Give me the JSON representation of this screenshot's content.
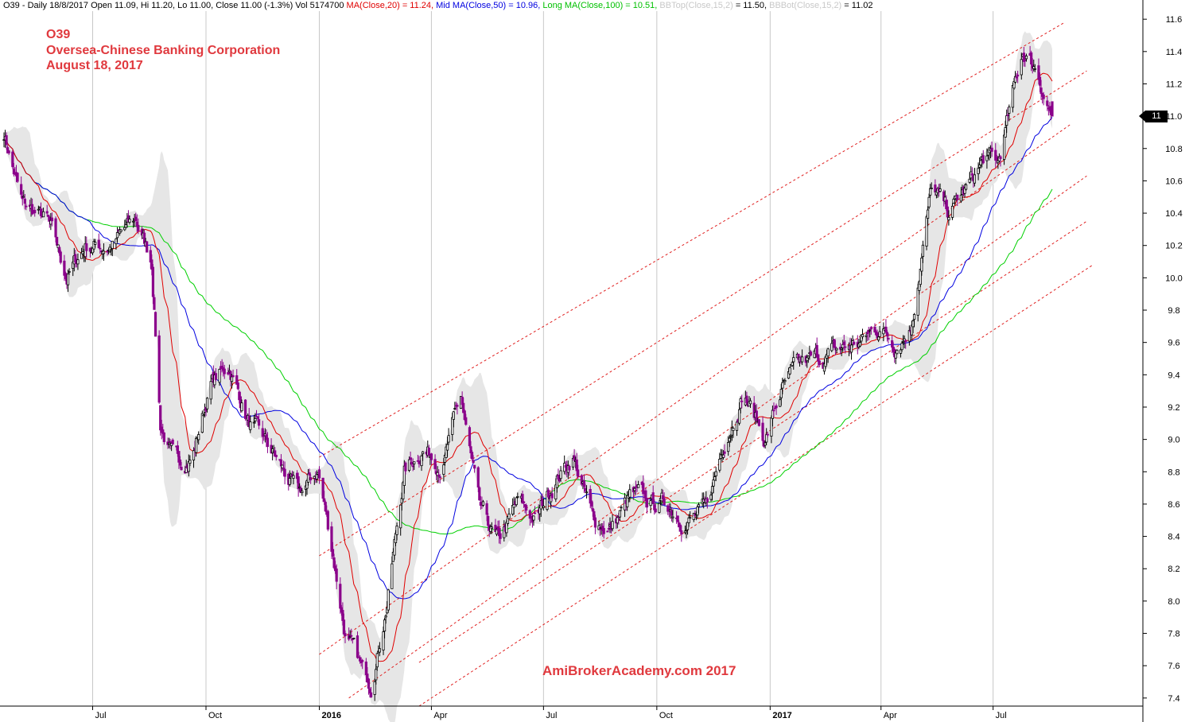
{
  "header": {
    "symbol_line": "O39 - Daily 18/8/2017 Open 11.09, Hi 11.20, Lo 11.00, Close 11.00 (-1.3%) Vol 5174700",
    "ma20": "MA(Close,20) = 11.24,",
    "ma50": "Mid MA(Close,50) = 10.96,",
    "ma100": "Long MA(Close,100) = 10.51,",
    "bbtop_name": "BBTop(Close,15,2)",
    "bbtop_val": "= 11.50,",
    "bbbot_name": "BBBot(Close,15,2)",
    "bbbot_val": "= 11.02"
  },
  "titles": {
    "line1": "O39",
    "line2": "Oversea-Chinese Banking Corporation",
    "line3": "August 18, 2017"
  },
  "watermark": "AmiBrokerAcademy.com  2017",
  "price_tag": "11",
  "colors": {
    "ma20": "#e00000",
    "ma50": "#0000e0",
    "ma100": "#00d000",
    "candle_up": "#000000",
    "candle_down": "#8b008b",
    "band": "#e6e6e6",
    "channel": "#e02020",
    "grid": "#c8c8c8",
    "title": "#e0393e"
  },
  "chart_data": {
    "type": "candlestick",
    "ylim": [
      7.35,
      11.65
    ],
    "y_ticks": [
      "11.6",
      "11.4",
      "11.2",
      "11.0",
      "10.8",
      "10.6",
      "10.4",
      "10.2",
      "10.0",
      "9.8",
      "9.6",
      "9.4",
      "9.2",
      "9.0",
      "8.8",
      "8.6",
      "8.4",
      "8.2",
      "8.0",
      "7.8",
      "7.6",
      "7.4"
    ],
    "x_ticks": [
      {
        "label": "Jul",
        "date": "2015-07-01"
      },
      {
        "label": "Oct",
        "date": "2015-10-01"
      },
      {
        "label": "2016",
        "date": "2016-01-01",
        "bold": true
      },
      {
        "label": "Apr",
        "date": "2016-04-01"
      },
      {
        "label": "Jul",
        "date": "2016-07-01"
      },
      {
        "label": "Oct",
        "date": "2016-10-01"
      },
      {
        "label": "2017",
        "date": "2017-01-01",
        "bold": true
      },
      {
        "label": "Apr",
        "date": "2017-04-01"
      },
      {
        "label": "Jul",
        "date": "2017-07-01"
      }
    ],
    "date_range": [
      "2015-04-20",
      "2017-08-18"
    ],
    "close_path": [
      [
        "2015-04-20",
        10.9
      ],
      [
        "2015-05-05",
        10.45
      ],
      [
        "2015-05-25",
        10.35
      ],
      [
        "2015-06-10",
        10.0
      ],
      [
        "2015-06-25",
        10.2
      ],
      [
        "2015-07-15",
        10.2
      ],
      [
        "2015-08-05",
        10.35
      ],
      [
        "2015-08-18",
        10.1
      ],
      [
        "2015-08-25",
        9.1
      ],
      [
        "2015-09-05",
        8.85
      ],
      [
        "2015-09-20",
        8.9
      ],
      [
        "2015-10-05",
        9.35
      ],
      [
        "2015-10-20",
        9.45
      ],
      [
        "2015-11-05",
        9.1
      ],
      [
        "2015-11-25",
        8.9
      ],
      [
        "2015-12-15",
        8.65
      ],
      [
        "2015-12-31",
        8.8
      ],
      [
        "2016-01-12",
        8.3
      ],
      [
        "2016-01-22",
        7.8
      ],
      [
        "2016-02-05",
        7.55
      ],
      [
        "2016-02-12",
        7.5
      ],
      [
        "2016-02-25",
        8.0
      ],
      [
        "2016-03-10",
        8.8
      ],
      [
        "2016-03-25",
        8.95
      ],
      [
        "2016-04-10",
        8.85
      ],
      [
        "2016-04-25",
        9.25
      ],
      [
        "2016-05-10",
        8.55
      ],
      [
        "2016-05-25",
        8.35
      ],
      [
        "2016-06-10",
        8.6
      ],
      [
        "2016-06-25",
        8.5
      ],
      [
        "2016-07-10",
        8.75
      ],
      [
        "2016-07-25",
        8.9
      ],
      [
        "2016-08-10",
        8.5
      ],
      [
        "2016-08-25",
        8.45
      ],
      [
        "2016-09-10",
        8.65
      ],
      [
        "2016-09-25",
        8.6
      ],
      [
        "2016-10-10",
        8.6
      ],
      [
        "2016-10-25",
        8.5
      ],
      [
        "2016-11-10",
        8.55
      ],
      [
        "2016-11-25",
        9.0
      ],
      [
        "2016-12-10",
        9.3
      ],
      [
        "2016-12-28",
        9.0
      ],
      [
        "2017-01-10",
        9.3
      ],
      [
        "2017-01-25",
        9.45
      ],
      [
        "2017-02-10",
        9.5
      ],
      [
        "2017-02-25",
        9.55
      ],
      [
        "2017-03-15",
        9.6
      ],
      [
        "2017-03-31",
        9.7
      ],
      [
        "2017-04-12",
        9.6
      ],
      [
        "2017-04-25",
        9.7
      ],
      [
        "2017-05-05",
        10.2
      ],
      [
        "2017-05-12",
        10.55
      ],
      [
        "2017-05-25",
        10.4
      ],
      [
        "2017-06-10",
        10.55
      ],
      [
        "2017-06-25",
        10.75
      ],
      [
        "2017-07-05",
        10.7
      ],
      [
        "2017-07-15",
        11.05
      ],
      [
        "2017-07-25",
        11.4
      ],
      [
        "2017-08-05",
        11.3
      ],
      [
        "2017-08-18",
        11.0
      ]
    ],
    "channel_lines": [
      [
        [
          "2016-01-01",
          8.89
        ],
        [
          "2017-08-28",
          11.58
        ]
      ],
      [
        [
          "2016-01-01",
          8.28
        ],
        [
          "2017-09-15",
          11.28
        ]
      ],
      [
        [
          "2016-01-01",
          7.67
        ],
        [
          "2017-09-02",
          10.95
        ]
      ],
      [
        [
          "2016-01-25",
          7.4
        ],
        [
          "2017-09-15",
          10.63
        ]
      ],
      [
        [
          "2016-03-22",
          7.62
        ],
        [
          "2017-09-15",
          10.35
        ]
      ],
      [
        [
          "2016-03-22",
          7.35
        ],
        [
          "2017-09-20",
          10.08
        ]
      ]
    ]
  }
}
